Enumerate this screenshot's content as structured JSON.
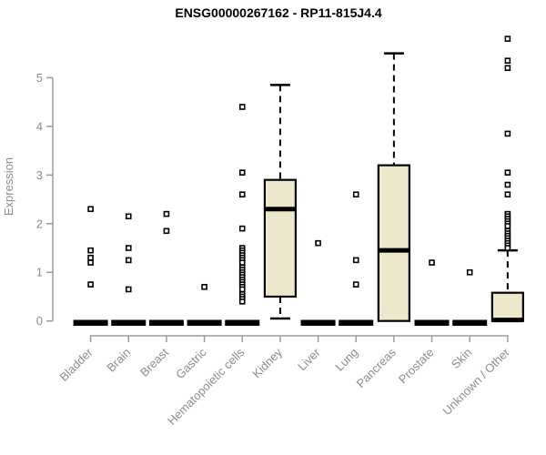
{
  "chart_data": {
    "type": "boxplot",
    "title": "ENSG00000267162 - RP11-815J4.4",
    "ylabel": "Expression",
    "xlabel": "",
    "ylim": [
      0,
      5.9
    ],
    "yticks": [
      0,
      1,
      2,
      3,
      4,
      5
    ],
    "grid": false,
    "legend": "none",
    "categories": [
      "Bladder",
      "Brain",
      "Breast",
      "Gastric",
      "Hematopoietic cells",
      "Kidney",
      "Liver",
      "Lung",
      "Pancreas",
      "Prostate",
      "Skin",
      "Unknown / Other"
    ],
    "boxes": [
      {
        "category": "Bladder",
        "q1": 0,
        "median": 0,
        "q3": 0,
        "whisker_low": 0,
        "whisker_high": 0,
        "outliers": [
          2.3,
          1.45,
          1.3,
          1.2,
          0.75
        ]
      },
      {
        "category": "Brain",
        "q1": 0,
        "median": 0,
        "q3": 0,
        "whisker_low": 0,
        "whisker_high": 0,
        "outliers": [
          2.15,
          1.5,
          1.25,
          0.65
        ]
      },
      {
        "category": "Breast",
        "q1": 0,
        "median": 0,
        "q3": 0,
        "whisker_low": 0,
        "whisker_high": 0,
        "outliers": [
          2.2,
          1.85
        ]
      },
      {
        "category": "Gastric",
        "q1": 0,
        "median": 0,
        "q3": 0,
        "whisker_low": 0,
        "whisker_high": 0,
        "outliers": [
          0.7
        ]
      },
      {
        "category": "Hematopoietic cells",
        "q1": 0,
        "median": 0,
        "q3": 0,
        "whisker_low": 0,
        "whisker_high": 0,
        "outliers": [
          4.4,
          3.05,
          2.6,
          1.9,
          1.5,
          1.45,
          1.4,
          1.35,
          1.3,
          1.25,
          1.2,
          1.1,
          1.05,
          1.0,
          0.95,
          0.9,
          0.85,
          0.8,
          0.75,
          0.7,
          0.65,
          0.55,
          0.5,
          0.45,
          0.4
        ]
      },
      {
        "category": "Kidney",
        "q1": 0.5,
        "median": 2.3,
        "q3": 2.9,
        "whisker_low": 0.05,
        "whisker_high": 4.85,
        "outliers": []
      },
      {
        "category": "Liver",
        "q1": 0,
        "median": 0,
        "q3": 0,
        "whisker_low": 0,
        "whisker_high": 0,
        "outliers": [
          1.6
        ]
      },
      {
        "category": "Lung",
        "q1": 0,
        "median": 0,
        "q3": 0,
        "whisker_low": 0,
        "whisker_high": 0,
        "outliers": [
          2.6,
          1.25,
          0.75
        ]
      },
      {
        "category": "Pancreas",
        "q1": 0,
        "median": 1.45,
        "q3": 3.2,
        "whisker_low": 0,
        "whisker_high": 5.5,
        "outliers": []
      },
      {
        "category": "Prostate",
        "q1": 0,
        "median": 0,
        "q3": 0,
        "whisker_low": 0,
        "whisker_high": 0,
        "outliers": [
          1.2
        ]
      },
      {
        "category": "Skin",
        "q1": 0,
        "median": 0,
        "q3": 0,
        "whisker_low": 0,
        "whisker_high": 0,
        "outliers": [
          1.0
        ]
      },
      {
        "category": "Unknown / Other",
        "q1": 0,
        "median": 0.02,
        "q3": 0.58,
        "whisker_low": 0,
        "whisker_high": 1.45,
        "outliers": [
          5.8,
          5.35,
          5.2,
          3.85,
          3.05,
          2.8,
          2.6,
          2.2,
          2.15,
          2.1,
          2.05,
          2.0,
          1.95,
          1.85,
          1.8,
          1.75,
          1.7,
          1.65,
          1.6,
          1.55,
          1.5
        ]
      }
    ],
    "style": {
      "box_fill": "#EDE8CC",
      "box_border": "#000000",
      "median_color": "#000000",
      "whisker_color": "#000000",
      "outlier_fill": "#FFFFFF",
      "outlier_border": "#000000",
      "axis_line_color": "#9B9B9B",
      "axis_text_color": "#8C8C8C",
      "title_color": "#000000",
      "background": "#FFFFFF"
    }
  }
}
